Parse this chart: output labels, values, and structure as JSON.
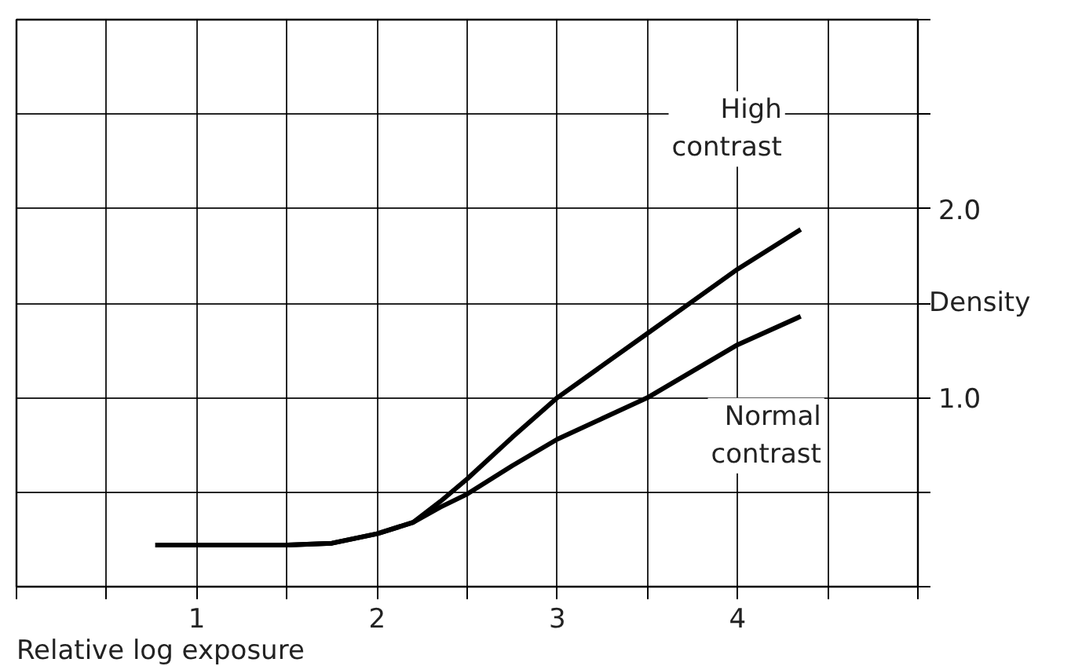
{
  "chart_data": {
    "type": "line",
    "xlabel": "Relative log exposure",
    "ylabel": "Density",
    "xlim": [
      0,
      5
    ],
    "ylim": [
      0,
      3
    ],
    "xticks": [
      {
        "value": 0,
        "label": null
      },
      {
        "value": 0.5,
        "label": null
      },
      1,
      {
        "value": 1.5,
        "label": null
      },
      2,
      {
        "value": 2.5,
        "label": null
      },
      3,
      {
        "value": 3.5,
        "label": null
      },
      4,
      {
        "value": 4.5,
        "label": null
      },
      {
        "value": 5,
        "label": null
      }
    ],
    "yticks": [
      {
        "value": 0,
        "label": null
      },
      {
        "value": 0.5,
        "label": null
      },
      {
        "value": 1,
        "label": "1.0"
      },
      {
        "value": 1.5,
        "label": null
      },
      {
        "value": 2,
        "label": "2.0"
      },
      {
        "value": 2.5,
        "label": null
      },
      {
        "value": 3,
        "label": null
      }
    ],
    "grid": true,
    "marker": "none",
    "line_style": "solid",
    "series": [
      {
        "name": "High contrast",
        "color": "#000000",
        "x": [
          0.77,
          1.0,
          1.5,
          1.75,
          2.0,
          2.2,
          2.35,
          2.5,
          2.75,
          3.0,
          3.25,
          3.5,
          3.75,
          4.0,
          4.35
        ],
        "values": [
          0.22,
          0.22,
          0.22,
          0.23,
          0.28,
          0.34,
          0.45,
          0.57,
          0.79,
          1.0,
          1.17,
          1.34,
          1.51,
          1.68,
          1.89
        ]
      },
      {
        "name": "Normal contrast",
        "color": "#000000",
        "x": [
          0.77,
          1.0,
          1.5,
          1.75,
          2.0,
          2.2,
          2.35,
          2.5,
          2.75,
          3.0,
          3.25,
          3.5,
          3.75,
          4.0,
          4.35
        ],
        "values": [
          0.22,
          0.22,
          0.22,
          0.23,
          0.28,
          0.34,
          0.42,
          0.49,
          0.64,
          0.78,
          0.89,
          1.0,
          1.14,
          1.28,
          1.43
        ]
      }
    ]
  }
}
